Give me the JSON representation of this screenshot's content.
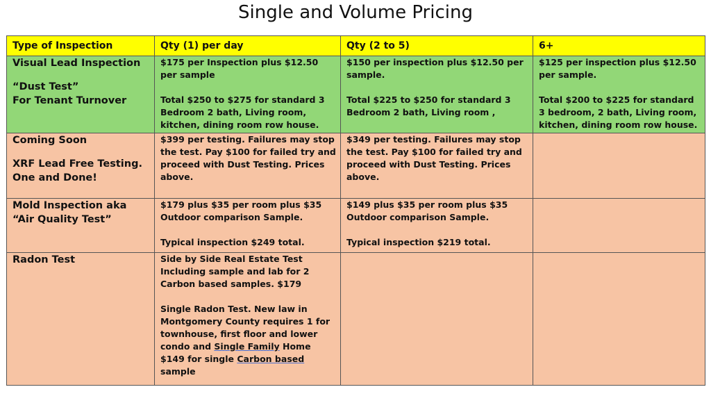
{
  "title": "Single and Volume Pricing",
  "headers": [
    "Type of Inspection",
    "Qty (1) per day",
    "Qty (2 to 5)",
    "6+"
  ],
  "rows": {
    "visual": {
      "type_line1": "Visual Lead Inspection",
      "type_line2": "“Dust Test”",
      "type_line3": "For Tenant Turnover",
      "qty1_p1": "$175 per Inspection plus $12.50 per sample",
      "qty1_p2": "Total $250 to $275 for standard 3 Bedroom 2 bath, Living room, kitchen, dining room row house.",
      "qty2_p1": "$150 per inspection plus $12.50 per sample.",
      "qty2_p2": "Total $225 to $250 for standard 3 Bedroom 2 bath, Living room ,",
      "qty6_p1": "$125 per inspection plus $12.50 per sample.",
      "qty6_p2": "Total $200 to $225 for standard 3 bedroom, 2 bath, Living room, kitchen, dining room row house."
    },
    "xrf": {
      "type_line1": "Coming Soon",
      "type_line2": "XRF Lead Free Testing. One and Done!",
      "qty1": "$399 per testing. Failures may stop the test.   Pay $100 for failed try and proceed with Dust Testing.  Prices above.",
      "qty2": "$349 per testing. Failures may stop the test.   Pay $100 for failed try and proceed with Dust Testing.  Prices above.",
      "qty6": ""
    },
    "mold": {
      "type": "Mold Inspection aka “Air Quality Test”",
      "qty1_p1": "$179 plus $35 per room plus $35 Outdoor comparison Sample.",
      "qty1_p2": "Typical inspection $249 total.",
      "qty2_p1": "$149 plus $35 per room plus $35 Outdoor comparison Sample.",
      "qty2_p2": "Typical inspection $219 total.",
      "qty6": ""
    },
    "radon": {
      "type": "Radon Test",
      "qty1_p1": "Side by Side Real Estate Test Including sample and lab for 2 Carbon based samples.  $179",
      "qty1_p2_a": "Single Radon Test.  New law in Montgomery County requires 1 for townhouse, first floor and lower condo and ",
      "qty1_p2_u1": "Single Family",
      "qty1_p2_b": " Home $149 for single ",
      "qty1_p2_u2": "Carbon based",
      "qty1_p2_c": " sample",
      "qty2": "",
      "qty6": ""
    }
  },
  "colors": {
    "header": "#ffff00",
    "green_row": "#92d777",
    "peach_row": "#f7c4a4"
  }
}
